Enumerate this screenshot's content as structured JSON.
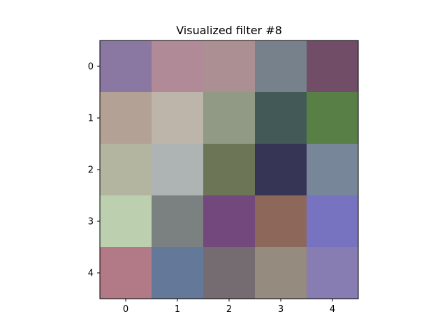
{
  "chart_data": {
    "type": "heatmap",
    "title": "Visualized filter #8",
    "x_ticks": [
      "0",
      "1",
      "2",
      "3",
      "4"
    ],
    "y_ticks": [
      "0",
      "1",
      "2",
      "3",
      "4"
    ],
    "xlim": [
      -0.5,
      4.5
    ],
    "ylim": [
      4.5,
      -0.5
    ],
    "grid": false,
    "cells": [
      [
        "#8a78a2",
        "#b08a96",
        "#ac8f92",
        "#77818c",
        "#714d67"
      ],
      [
        "#b4a196",
        "#bdb4aa",
        "#909a84",
        "#425957",
        "#577f46"
      ],
      [
        "#b4b5a0",
        "#aeb4b4",
        "#6c7657",
        "#363556",
        "#778699"
      ],
      [
        "#bccfaf",
        "#7b8181",
        "#72487d",
        "#8d675a",
        "#7873c1"
      ],
      [
        "#b27a87",
        "#647899",
        "#756c72",
        "#958b7f",
        "#877db2"
      ]
    ]
  }
}
